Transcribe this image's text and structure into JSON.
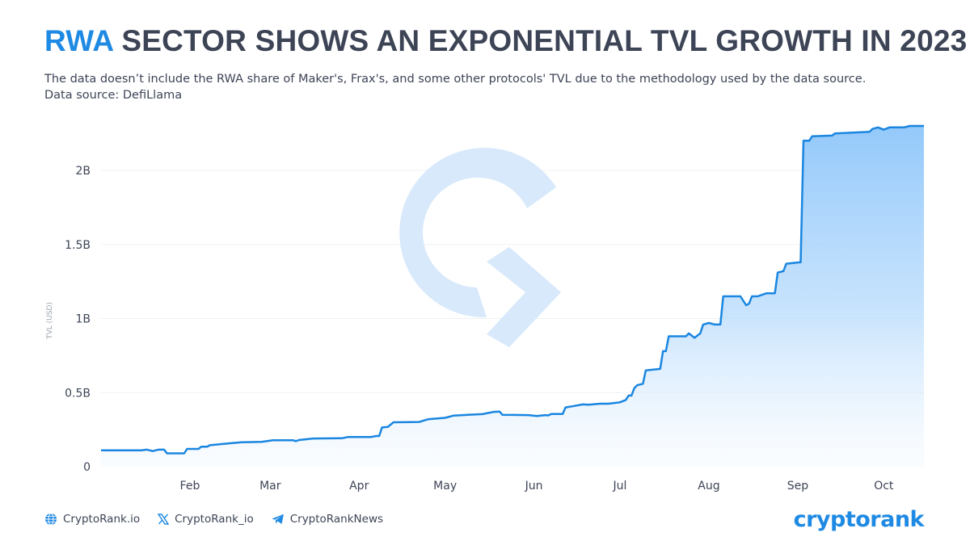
{
  "header": {
    "title_accent": "RWA",
    "title_rest": "SECTOR SHOWS AN EXPONENTIAL TVL GROWTH IN 2023",
    "subtitle_line1": "The data doesn’t include the RWA share of Maker's, Frax's, and some other protocols' TVL due to the methodology used by the data source.",
    "subtitle_line2": "Data source: DefiLlama"
  },
  "footer": {
    "website": "CryptoRank.io",
    "twitter": "CryptoRank_io",
    "telegram": "CryptoRankNews",
    "brand": "cryptorank",
    "icons": [
      "globe-icon",
      "x-icon",
      "telegram-icon"
    ]
  },
  "colors": {
    "accent": "#1f8ae3",
    "line": "#1a86e0",
    "area_top": "#8ec6fa",
    "text": "#3d4456"
  },
  "chart_data": {
    "type": "area",
    "xlabel": "",
    "ylabel": "TVL (USD)",
    "x_tick_labels": [
      "Feb",
      "Mar",
      "Apr",
      "May",
      "Jun",
      "Jul",
      "Aug",
      "Sep",
      "Oct"
    ],
    "x_tick_dates": [
      "2023-02-01",
      "2023-03-01",
      "2023-04-01",
      "2023-05-01",
      "2023-06-01",
      "2023-07-01",
      "2023-08-01",
      "2023-09-01",
      "2023-10-01"
    ],
    "y_ticks": [
      0,
      500000000,
      1000000000,
      1500000000,
      2000000000
    ],
    "y_tick_labels": [
      "0",
      "0.5B",
      "1B",
      "1.5B",
      "2B"
    ],
    "ylim": [
      0,
      2300000000
    ],
    "xlim": [
      "2023-01-01",
      "2023-10-15"
    ],
    "grid": true,
    "legend": "none",
    "series": [
      {
        "points": [
          [
            "2023-01-01",
            110000000
          ],
          [
            "2023-01-15",
            110000000
          ],
          [
            "2023-01-17",
            115000000
          ],
          [
            "2023-01-19",
            105000000
          ],
          [
            "2023-01-21",
            115000000
          ],
          [
            "2023-01-23",
            115000000
          ],
          [
            "2023-01-24",
            90000000
          ],
          [
            "2023-01-30",
            90000000
          ],
          [
            "2023-01-31",
            120000000
          ],
          [
            "2023-02-04",
            120000000
          ],
          [
            "2023-02-05",
            135000000
          ],
          [
            "2023-02-07",
            135000000
          ],
          [
            "2023-02-08",
            145000000
          ],
          [
            "2023-02-15",
            158000000
          ],
          [
            "2023-02-19",
            165000000
          ],
          [
            "2023-02-26",
            168000000
          ],
          [
            "2023-03-02",
            178000000
          ],
          [
            "2023-03-09",
            178000000
          ],
          [
            "2023-03-10",
            172000000
          ],
          [
            "2023-03-11",
            180000000
          ],
          [
            "2023-03-16",
            190000000
          ],
          [
            "2023-03-26",
            192000000
          ],
          [
            "2023-03-28",
            200000000
          ],
          [
            "2023-04-05",
            200000000
          ],
          [
            "2023-04-07",
            207000000
          ],
          [
            "2023-04-08",
            207000000
          ],
          [
            "2023-04-09",
            265000000
          ],
          [
            "2023-04-11",
            268000000
          ],
          [
            "2023-04-13",
            300000000
          ],
          [
            "2023-04-22",
            302000000
          ],
          [
            "2023-04-25",
            320000000
          ],
          [
            "2023-05-01",
            330000000
          ],
          [
            "2023-05-04",
            345000000
          ],
          [
            "2023-05-09",
            350000000
          ],
          [
            "2023-05-14",
            355000000
          ],
          [
            "2023-05-18",
            370000000
          ],
          [
            "2023-05-20",
            372000000
          ],
          [
            "2023-05-21",
            350000000
          ],
          [
            "2023-05-30",
            348000000
          ],
          [
            "2023-06-02",
            342000000
          ],
          [
            "2023-06-05",
            348000000
          ],
          [
            "2023-06-06",
            346000000
          ],
          [
            "2023-06-07",
            356000000
          ],
          [
            "2023-06-11",
            356000000
          ],
          [
            "2023-06-12",
            400000000
          ],
          [
            "2023-06-15",
            410000000
          ],
          [
            "2023-06-18",
            420000000
          ],
          [
            "2023-06-20",
            418000000
          ],
          [
            "2023-06-24",
            425000000
          ],
          [
            "2023-06-27",
            425000000
          ],
          [
            "2023-06-29",
            430000000
          ],
          [
            "2023-07-01",
            435000000
          ],
          [
            "2023-07-03",
            450000000
          ],
          [
            "2023-07-04",
            480000000
          ],
          [
            "2023-07-05",
            480000000
          ],
          [
            "2023-07-06",
            530000000
          ],
          [
            "2023-07-07",
            550000000
          ],
          [
            "2023-07-09",
            560000000
          ],
          [
            "2023-07-10",
            650000000
          ],
          [
            "2023-07-15",
            660000000
          ],
          [
            "2023-07-16",
            780000000
          ],
          [
            "2023-07-17",
            780000000
          ],
          [
            "2023-07-18",
            880000000
          ],
          [
            "2023-07-24",
            880000000
          ],
          [
            "2023-07-25",
            900000000
          ],
          [
            "2023-07-27",
            870000000
          ],
          [
            "2023-07-29",
            900000000
          ],
          [
            "2023-07-30",
            960000000
          ],
          [
            "2023-08-01",
            970000000
          ],
          [
            "2023-08-03",
            960000000
          ],
          [
            "2023-08-05",
            960000000
          ],
          [
            "2023-08-06",
            1150000000
          ],
          [
            "2023-08-12",
            1150000000
          ],
          [
            "2023-08-14",
            1090000000
          ],
          [
            "2023-08-15",
            1100000000
          ],
          [
            "2023-08-16",
            1150000000
          ],
          [
            "2023-08-18",
            1150000000
          ],
          [
            "2023-08-21",
            1170000000
          ],
          [
            "2023-08-24",
            1170000000
          ],
          [
            "2023-08-25",
            1310000000
          ],
          [
            "2023-08-27",
            1320000000
          ],
          [
            "2023-08-28",
            1370000000
          ],
          [
            "2023-09-02",
            1380000000
          ],
          [
            "2023-09-03",
            2200000000
          ],
          [
            "2023-09-05",
            2200000000
          ],
          [
            "2023-09-06",
            2230000000
          ],
          [
            "2023-09-13",
            2235000000
          ],
          [
            "2023-09-14",
            2250000000
          ],
          [
            "2023-09-26",
            2260000000
          ],
          [
            "2023-09-27",
            2280000000
          ],
          [
            "2023-09-29",
            2290000000
          ],
          [
            "2023-10-01",
            2275000000
          ],
          [
            "2023-10-03",
            2290000000
          ],
          [
            "2023-10-08",
            2290000000
          ],
          [
            "2023-10-10",
            2300000000
          ],
          [
            "2023-10-15",
            2300000000
          ]
        ]
      }
    ]
  }
}
